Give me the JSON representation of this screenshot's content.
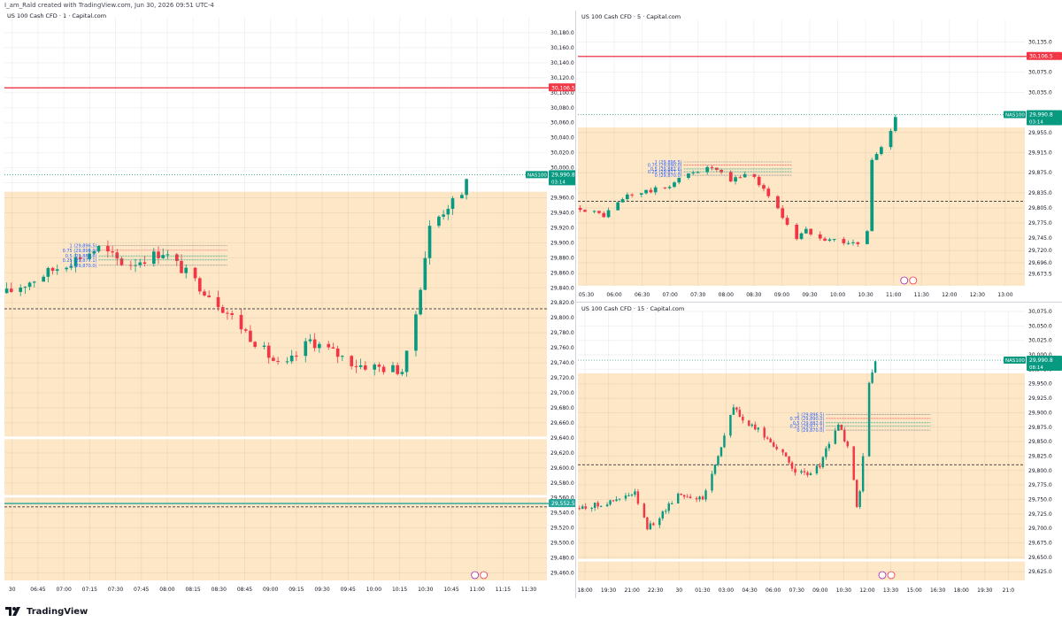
{
  "header": {
    "text": "I_am_Rald created with TradingView.com, Jun 30, 2026 09:51 UTC-4"
  },
  "footer": {
    "logo_text": "TradingView"
  },
  "colors": {
    "up": "#089981",
    "down": "#f23645",
    "zone": "#fde7c6",
    "resistance": "#f23645",
    "support": "#26a69a",
    "price_tag": "#089981"
  },
  "chart_data": [
    {
      "type": "candlestick",
      "title": "US 100 Cash CFD · 1 · Capital.com",
      "ylim": [
        29450,
        30200
      ],
      "y_ticks": [
        30180,
        30160,
        30140,
        30120,
        30100,
        30080,
        30060,
        30040,
        30020,
        30000,
        29980,
        29960,
        29940,
        29920,
        29900,
        29880,
        29860,
        29840,
        29820,
        29800,
        29780,
        29760,
        29740,
        29720,
        29700,
        29680,
        29660,
        29640,
        29620,
        29600,
        29580,
        29560,
        29540,
        29520,
        29500,
        29480,
        29460
      ],
      "y_tick_labels": [
        "30,180.0",
        "30,160.0",
        "30,140.0",
        "30,120.0",
        "30,100.0",
        "30,080.0",
        "30,060.0",
        "30,040.0",
        "30,020.0",
        "30,000.0",
        "29,980.0",
        "29,960.0",
        "29,940.0",
        "29,920.0",
        "29,900.0",
        "29,880.0",
        "29,860.0",
        "29,840.0",
        "29,820.0",
        "29,800.0",
        "29,780.0",
        "29,760.0",
        "29,740.0",
        "29,720.0",
        "29,700.0",
        "29,680.0",
        "29,660.0",
        "29,640.0",
        "29,620.0",
        "29,600.0",
        "29,580.0",
        "29,560.0",
        "29,540.0",
        "29,520.0",
        "29,500.0",
        "29,480.0",
        "29,460.0"
      ],
      "x_labels": [
        "30",
        "06:45",
        "07:00",
        "07:15",
        "07:30",
        "07:45",
        "08:00",
        "08:15",
        "08:30",
        "08:45",
        "09:00",
        "09:15",
        "09:30",
        "09:45",
        "10:00",
        "10:15",
        "10:30",
        "10:45",
        "11:00",
        "11:15",
        "11:30"
      ],
      "candle_count": 80,
      "slots": 118,
      "key_points": [
        [
          0,
          29833
        ],
        [
          12,
          29870
        ],
        [
          20,
          29893
        ],
        [
          26,
          29870
        ],
        [
          34,
          29888
        ],
        [
          46,
          29820
        ],
        [
          60,
          29730
        ],
        [
          66,
          29770
        ],
        [
          76,
          29738
        ],
        [
          86,
          29730
        ],
        [
          88,
          29768
        ],
        [
          92,
          29920
        ],
        [
          96,
          29950
        ],
        [
          99,
          29960
        ],
        [
          100,
          29990
        ]
      ],
      "zone_lines": [
        29968,
        29640,
        29562
      ],
      "resistance": {
        "value": 30106.5,
        "label": "30,106.5"
      },
      "support": {
        "value": 29552.5,
        "label": "29,552.5"
      },
      "dashed_levels": [
        29812,
        29548
      ],
      "last_price": {
        "value": 29990.8,
        "label": "29,990.8",
        "symbol": "NAS100",
        "countdown": "03:14"
      },
      "fib": {
        "levels": [
          29896.5,
          29890.0,
          29882.6,
          29877.1,
          29870.0
        ],
        "labels": [
          "1 (29,896.5)",
          "0.75 (29,890.0)",
          "0.5 (29,882.6)",
          "0.25 (29,877.1)",
          "0 (29,870.0)"
        ],
        "start_index": 22
      },
      "events_at_slot": 103
    },
    {
      "type": "candlestick",
      "title": "US 100 Cash CFD · 5 · Capital.com",
      "ylim": [
        29650,
        30180
      ],
      "y_ticks": [
        30135,
        30105,
        30075,
        30035,
        29990,
        29955,
        29915,
        29875,
        29835,
        29805,
        29775,
        29745,
        29720,
        29696,
        29673.5
      ],
      "y_tick_labels": [
        "30,135.0",
        "30,105.0",
        "30,075.0",
        "30,035.0",
        "29,990.0",
        "29,955.0",
        "29,915.0",
        "29,875.0",
        "29,835.0",
        "29,805.0",
        "29,775.0",
        "29,745.0",
        "29,720.0",
        "29,696.0",
        "29,673.5"
      ],
      "x_labels": [
        "05:30",
        "06:00",
        "06:30",
        "07:00",
        "07:30",
        "08:00",
        "08:30",
        "09:00",
        "09:30",
        "10:00",
        "10:30",
        "11:00",
        "11:30",
        "12:00",
        "12:30",
        "13:00"
      ],
      "candle_count": 54,
      "slots": 95,
      "key_points": [
        [
          0,
          29805
        ],
        [
          5,
          29790
        ],
        [
          10,
          29830
        ],
        [
          18,
          29845
        ],
        [
          24,
          29878
        ],
        [
          28,
          29885
        ],
        [
          32,
          29858
        ],
        [
          36,
          29878
        ],
        [
          40,
          29830
        ],
        [
          46,
          29745
        ],
        [
          48,
          29760
        ],
        [
          52,
          29745
        ],
        [
          56,
          29738
        ],
        [
          60,
          29730
        ],
        [
          61,
          29760
        ],
        [
          62,
          29900
        ],
        [
          64,
          29925
        ],
        [
          66,
          29960
        ],
        [
          67,
          29990
        ]
      ],
      "zone_lines": [
        29965
      ],
      "resistance": {
        "value": 30106.5,
        "label": "30,106.5"
      },
      "dashed_levels": [
        29818
      ],
      "last_price": {
        "value": 29990.8,
        "label": "29,990.8",
        "symbol": "NAS100",
        "countdown": "03:14"
      },
      "fib": {
        "levels": [
          29896.5,
          29890.0,
          29882.6,
          29877.1,
          29870.0
        ],
        "labels": [
          "1 (29,896.5)",
          "0.75 (29,890.0)",
          "0.5 (29,882.6)",
          "0.25 (29,877.1)",
          "0 (29,870.0)"
        ],
        "start_index": 24
      },
      "events_at_slot": 70
    },
    {
      "type": "candlestick",
      "title": "US 100 Cash CFD · 15 · Capital.com",
      "ylim": [
        29610,
        30075
      ],
      "y_ticks": [
        30075,
        30050,
        30025,
        30000,
        29975,
        29950,
        29925,
        29900,
        29875,
        29850,
        29825,
        29800,
        29775,
        29750,
        29725,
        29700,
        29675,
        29650,
        29625
      ],
      "y_tick_labels": [
        "30,075.0",
        "30,050.0",
        "30,025.0",
        "30,000.0",
        "29,975.0",
        "29,950.0",
        "29,925.0",
        "29,900.0",
        "29,875.0",
        "29,850.0",
        "29,825.0",
        "29,800.0",
        "29,775.0",
        "29,750.0",
        "29,725.0",
        "29,700.0",
        "29,675.0",
        "29,650.0",
        "29,625.0"
      ],
      "x_labels": [
        "18:00",
        "19:30",
        "21:00",
        "22:30",
        "30",
        "01:30",
        "03:00",
        "04:30",
        "06:00",
        "07:30",
        "09:00",
        "10:30",
        "12:00",
        "13:30",
        "15:00",
        "16:30",
        "18:00",
        "19:30",
        "21:0"
      ],
      "candle_count": 80,
      "slots": 145,
      "key_points": [
        [
          0,
          29735
        ],
        [
          10,
          29745
        ],
        [
          18,
          29760
        ],
        [
          22,
          29700
        ],
        [
          26,
          29720
        ],
        [
          32,
          29760
        ],
        [
          40,
          29750
        ],
        [
          44,
          29810
        ],
        [
          50,
          29910
        ],
        [
          54,
          29880
        ],
        [
          58,
          29870
        ],
        [
          64,
          29840
        ],
        [
          70,
          29800
        ],
        [
          74,
          29790
        ],
        [
          78,
          29810
        ],
        [
          82,
          29860
        ],
        [
          84,
          29880
        ],
        [
          87,
          29840
        ],
        [
          89,
          29780
        ],
        [
          90,
          29740
        ],
        [
          91,
          29760
        ],
        [
          94,
          29950
        ],
        [
          96,
          29990
        ]
      ],
      "zone_lines": [
        29968,
        29645
      ],
      "dashed_levels": [
        29810
      ],
      "last_price": {
        "value": 29990.8,
        "label": "29,990.8",
        "symbol": "NAS100",
        "countdown": "08:14"
      },
      "fib": {
        "levels": [
          29896.5,
          29890.0,
          29882.6,
          29877.1,
          29870.0
        ],
        "labels": [
          "1 (29,896.5)",
          "0.75 (29,890.0)",
          "0.5 (29,882.6)",
          "0.25 (29,877.1)",
          "0 (29,870.0)"
        ],
        "start_index": 82
      },
      "events_at_slot": 100
    }
  ]
}
